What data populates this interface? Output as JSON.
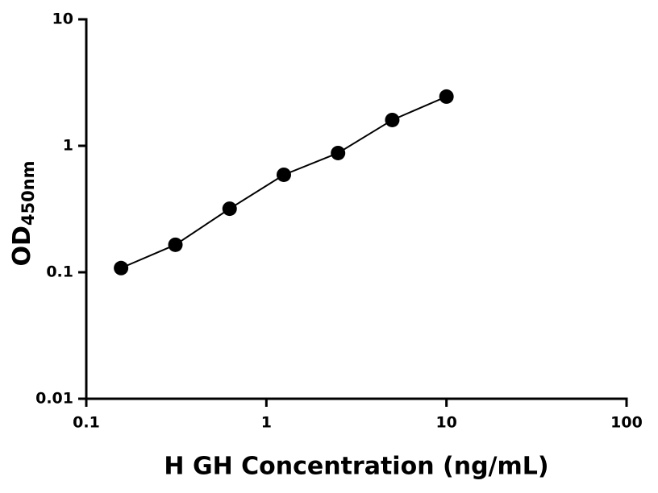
{
  "chart_data": {
    "type": "line",
    "markers": true,
    "log_x": true,
    "log_y": true,
    "xlabel": "H GH Concentration (ng/mL)",
    "ylabel": {
      "text": "OD",
      "subscript": "450nm"
    },
    "x": [
      0.156,
      0.3125,
      0.625,
      1.25,
      2.5,
      5,
      10
    ],
    "series": [
      {
        "color": "#000000",
        "values": [
          0.108,
          0.165,
          0.318,
          0.59,
          0.877,
          1.6,
          2.45
        ]
      }
    ],
    "xlim": [
      0.1,
      100
    ],
    "xticks": [
      0.1,
      1,
      10,
      100
    ],
    "ylim": [
      0.01,
      10
    ],
    "yticks": [
      0.01,
      0.1,
      1,
      10
    ]
  }
}
